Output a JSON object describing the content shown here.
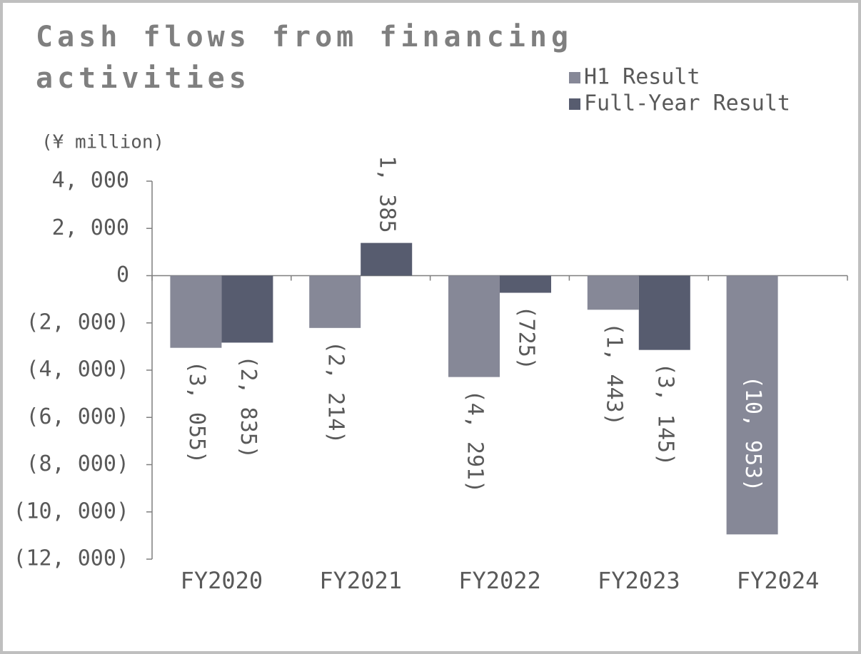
{
  "chart_data": {
    "type": "bar",
    "title": "Cash flows from financing activities",
    "unit_label": "(¥ million)",
    "categories": [
      "FY2020",
      "FY2021",
      "FY2022",
      "FY2023",
      "FY2024"
    ],
    "series": [
      {
        "name": "H1 Result",
        "color": "#868897",
        "values": [
          -3055,
          -2214,
          -4291,
          -1443,
          -10953
        ],
        "value_labels": [
          "(3, 055)",
          "(2, 214)",
          "(4, 291)",
          "(1, 443)",
          "(10, 953)"
        ]
      },
      {
        "name": "Full-Year Result",
        "color": "#575c6f",
        "values": [
          -2835,
          1385,
          -725,
          -3145,
          null
        ],
        "value_labels": [
          "(2, 835)",
          "1, 385",
          "(725)",
          "(3, 145)",
          null
        ]
      }
    ],
    "ylim": [
      -12000,
      4000
    ],
    "yticks": [
      {
        "value": 4000,
        "label": "4, 000"
      },
      {
        "value": 2000,
        "label": "2, 000"
      },
      0,
      {
        "value": -2000,
        "label": "(2, 000)"
      },
      {
        "value": -4000,
        "label": "(4, 000)"
      },
      {
        "value": -6000,
        "label": "(6, 000)"
      },
      {
        "value": -8000,
        "label": "(8, 000)"
      },
      {
        "value": -10000,
        "label": "(10, 000)"
      },
      {
        "value": -12000,
        "label": "(12, 000)"
      }
    ],
    "legend": "top-right"
  }
}
